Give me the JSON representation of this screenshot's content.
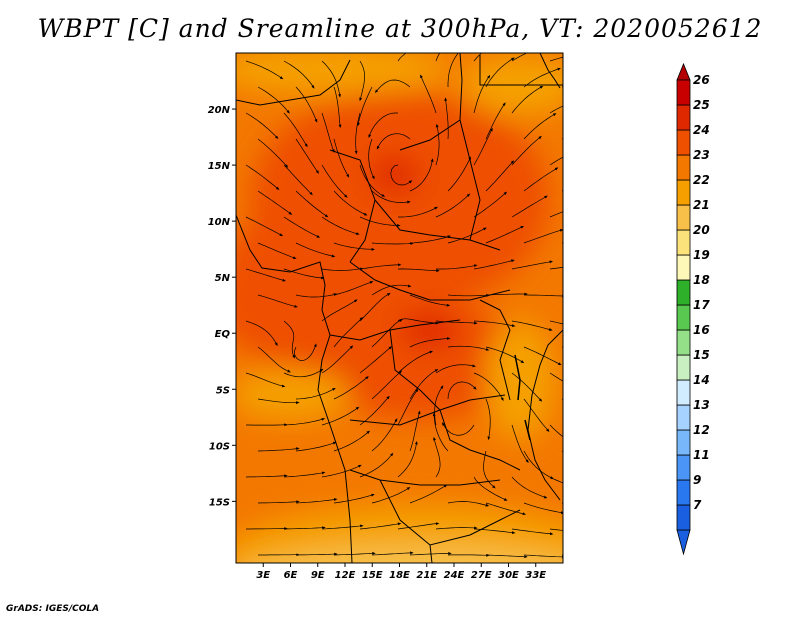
{
  "title": "WBPT [C] and Sreamline at 300hPa, VT: 2020052612",
  "credit": "GrADS: IGES/COLA",
  "map": {
    "lon_range": [
      0,
      36
    ],
    "lat_range": [
      -20.5,
      25
    ],
    "lon_ticks": [
      {
        "value": 3,
        "label": "3E"
      },
      {
        "value": 6,
        "label": "6E"
      },
      {
        "value": 9,
        "label": "9E"
      },
      {
        "value": 12,
        "label": "12E"
      },
      {
        "value": 15,
        "label": "15E"
      },
      {
        "value": 18,
        "label": "18E"
      },
      {
        "value": 21,
        "label": "21E"
      },
      {
        "value": 24,
        "label": "24E"
      },
      {
        "value": 27,
        "label": "27E"
      },
      {
        "value": 30,
        "label": "30E"
      },
      {
        "value": 33,
        "label": "33E"
      }
    ],
    "lat_ticks": [
      {
        "value": 20,
        "label": "20N"
      },
      {
        "value": 15,
        "label": "15N"
      },
      {
        "value": 10,
        "label": "10N"
      },
      {
        "value": 5,
        "label": "5N"
      },
      {
        "value": 0,
        "label": "EQ"
      },
      {
        "value": -5,
        "label": "5S"
      },
      {
        "value": -10,
        "label": "10S"
      },
      {
        "value": -15,
        "label": "15S"
      }
    ]
  },
  "colorbar": {
    "extend": "both",
    "bins": [
      {
        "color": "#1a5fe0"
      },
      {
        "color": "#2a78f0"
      },
      {
        "color": "#4a95f5"
      },
      {
        "color": "#78b8fa"
      },
      {
        "color": "#a6d2ff"
      },
      {
        "color": "#d2ecff"
      },
      {
        "color": "#c8f0c0"
      },
      {
        "color": "#94e088"
      },
      {
        "color": "#58c850"
      },
      {
        "color": "#2fb02a"
      },
      {
        "color": "#fef8b8"
      },
      {
        "color": "#fce27a"
      },
      {
        "color": "#f8c048"
      },
      {
        "color": "#f5a000"
      },
      {
        "color": "#f37800"
      },
      {
        "color": "#ee5000"
      },
      {
        "color": "#e02800"
      },
      {
        "color": "#c80000"
      }
    ],
    "labels": [
      "7",
      "9",
      "11",
      "12",
      "13",
      "14",
      "15",
      "16",
      "17",
      "18",
      "19",
      "20",
      "21",
      "22",
      "23",
      "24",
      "25",
      "26"
    ],
    "under_color": "#1a5fe0",
    "over_color": "#b40000"
  }
}
